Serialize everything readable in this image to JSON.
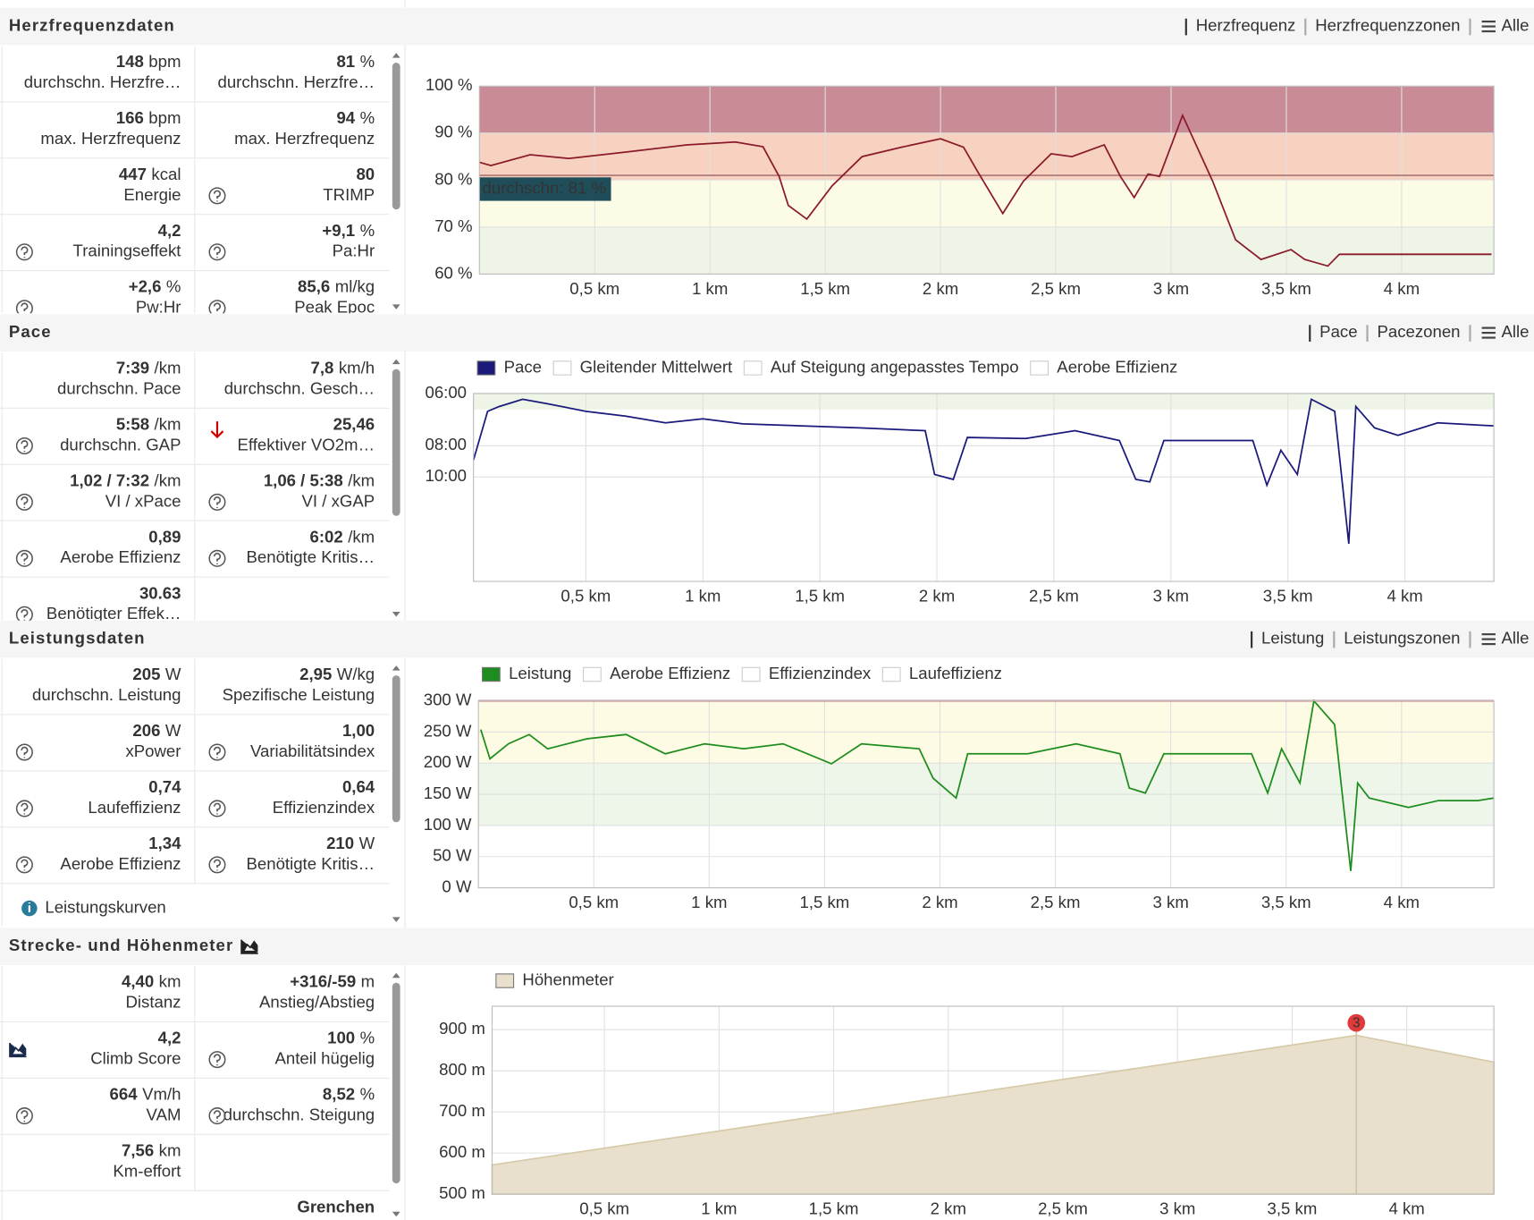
{
  "sections": [
    {
      "title": "Herzfrequenzdaten",
      "tabs": [
        "Herzfrequenz",
        "Herzfrequenzzonen",
        "Alle"
      ],
      "stats": [
        {
          "value": "148",
          "unit": "bpm",
          "label": "durchschn. Herzfre…"
        },
        {
          "value": "81",
          "unit": "%",
          "label": "durchschn. Herzfre…"
        },
        {
          "value": "166",
          "unit": "bpm",
          "label": "max. Herzfrequenz"
        },
        {
          "value": "94",
          "unit": "%",
          "label": "max. Herzfrequenz"
        },
        {
          "value": "447",
          "unit": "kcal",
          "label": "Energie"
        },
        {
          "value": "80",
          "label": "TRIMP",
          "icon": "help"
        },
        {
          "value": "4,2",
          "label": "Trainingseffekt",
          "icon": "help"
        },
        {
          "value": "+9,1",
          "unit": "%",
          "label": "Pa:Hr",
          "icon": "help"
        },
        {
          "value": "+2,6",
          "unit": "%",
          "label": "Pw:Hr",
          "icon": "help"
        },
        {
          "value": "85,6",
          "unit": "ml/kg",
          "label": "Peak Epoc",
          "icon": "help"
        }
      ],
      "chart": {
        "type": "line",
        "xlim": [
          0,
          4.4
        ],
        "ylim": [
          60,
          100
        ],
        "xticks": [
          {
            "value": 0.5,
            "label": "0,5 km"
          },
          {
            "value": 1,
            "label": "1 km"
          },
          {
            "value": 1.5,
            "label": "1,5 km"
          },
          {
            "value": 2,
            "label": "2 km"
          },
          {
            "value": 2.5,
            "label": "2,5 km"
          },
          {
            "value": 3,
            "label": "3 km"
          },
          {
            "value": 3.5,
            "label": "3,5 km"
          },
          {
            "value": 4,
            "label": "4 km"
          }
        ],
        "yticks": [
          {
            "value": 60,
            "label": "60 %"
          },
          {
            "value": 70,
            "label": "70 %"
          },
          {
            "value": 80,
            "label": "80 %"
          },
          {
            "value": 90,
            "label": "90 %"
          },
          {
            "value": 100,
            "label": "100 %"
          }
        ],
        "zones": [
          {
            "from": 90,
            "to": 100,
            "color": "#c98b96"
          },
          {
            "from": 80,
            "to": 90,
            "color": "#f7d2c0"
          },
          {
            "from": 70,
            "to": 80,
            "color": "#fcfbe6"
          },
          {
            "from": 60,
            "to": 70,
            "color": "#eef5e7"
          }
        ],
        "average": 81,
        "average_label": "durchschn: 81 %",
        "series": [
          {
            "color": "#8b1a2b",
            "x": [
              0,
              0.05,
              0.22,
              0.39,
              0.64,
              0.9,
              1.11,
              1.23,
              1.3,
              1.34,
              1.42,
              1.53,
              1.66,
              1.83,
              2.0,
              2.1,
              2.16,
              2.27,
              2.36,
              2.48,
              2.57,
              2.71,
              2.78,
              2.84,
              2.9,
              2.95,
              3.05,
              3.18,
              3.28,
              3.39,
              3.52,
              3.58,
              3.68,
              3.73,
              4.39
            ],
            "values": [
              83.8,
              83.1,
              85.4,
              84.6,
              86,
              87.5,
              88.1,
              87.1,
              80.8,
              74.6,
              71.7,
              78.8,
              85,
              87,
              88.8,
              87,
              81.9,
              72.9,
              79.8,
              85.6,
              85,
              87.5,
              80.8,
              76.3,
              81.3,
              80.8,
              93.8,
              79.8,
              67.3,
              63.1,
              65.2,
              63.1,
              61.7,
              64.2,
              64.2
            ]
          }
        ]
      }
    },
    {
      "title": "Pace",
      "tabs": [
        "Pace",
        "Pacezonen",
        "Alle"
      ],
      "stats": [
        {
          "value": "7:39",
          "unit": "/km",
          "label": "durchschn. Pace"
        },
        {
          "value": "7,8",
          "unit": "km/h",
          "label": "durchschn. Gesch…"
        },
        {
          "value": "5:58",
          "unit": "/km",
          "label": "durchschn. GAP",
          "icon": "help"
        },
        {
          "value": "25,46",
          "label": "Effektiver VO2m…",
          "icon": "arrow-down"
        },
        {
          "value": "1,02 / 7:32",
          "unit": "/km",
          "label": "VI / xPace",
          "icon": "help"
        },
        {
          "value": "1,06 / 5:38",
          "unit": "/km",
          "label": "VI / xGAP",
          "icon": "help"
        },
        {
          "value": "0,89",
          "label": "Aerobe Effizienz",
          "icon": "help"
        },
        {
          "value": "6:02",
          "unit": "/km",
          "label": "Benötigte Kritis…",
          "icon": "help"
        },
        {
          "value": "30.63",
          "label": "Benötigter Effek…",
          "icon": "help"
        }
      ],
      "chart": {
        "type": "line",
        "yscale": "reciprocal",
        "xlim": [
          0.02,
          4.38
        ],
        "ylim": [
          6,
          60
        ],
        "xticks": [
          {
            "value": 0.5,
            "label": "0,5 km"
          },
          {
            "value": 1,
            "label": "1 km"
          },
          {
            "value": 1.5,
            "label": "1,5 km"
          },
          {
            "value": 2,
            "label": "2 km"
          },
          {
            "value": 2.5,
            "label": "2,5 km"
          },
          {
            "value": 3,
            "label": "3 km"
          },
          {
            "value": 3.5,
            "label": "3,5 km"
          },
          {
            "value": 4,
            "label": "4 km"
          }
        ],
        "yticks": [
          {
            "value": 6,
            "label": "06:00"
          },
          {
            "value": 8,
            "label": "08:00"
          },
          {
            "value": 10,
            "label": "10:00"
          }
        ],
        "zones": [
          {
            "from": 6,
            "to": 6.5,
            "color": "#eef5e7"
          }
        ],
        "hidden_series": [
          "Gleitender Mittelwert",
          "Auf Steigung angepasstes Tempo",
          "Aerobe Effizienz"
        ],
        "series": [
          {
            "name": "Pace",
            "color": "#1a1a7a",
            "x": [
              0.02,
              0.08,
              0.13,
              0.23,
              0.33,
              0.5,
              0.67,
              0.84,
              1.0,
              1.17,
              1.42,
              1.67,
              1.95,
              1.99,
              2.07,
              2.13,
              2.38,
              2.59,
              2.78,
              2.85,
              2.91,
              2.97,
              3.35,
              3.41,
              3.47,
              3.54,
              3.6,
              3.7,
              3.76,
              3.79,
              3.87,
              3.97,
              4.14,
              4.38
            ],
            "values": [
              8.8,
              6.56,
              6.4,
              6.17,
              6.3,
              6.56,
              6.73,
              6.98,
              6.83,
              7.02,
              7.1,
              7.18,
              7.3,
              9.8,
              10.2,
              7.6,
              7.65,
              7.3,
              7.74,
              10.2,
              10.4,
              7.74,
              7.74,
              10.7,
              8.24,
              9.8,
              6.17,
              6.56,
              21.4,
              6.4,
              7.18,
              7.5,
              6.98,
              7.1
            ]
          }
        ]
      }
    },
    {
      "title": "Leistungsdaten",
      "tabs": [
        "Leistung",
        "Leistungszonen",
        "Alle"
      ],
      "stats": [
        {
          "value": "205",
          "unit": "W",
          "label": "durchschn. Leistung"
        },
        {
          "value": "2,95",
          "unit": "W/kg",
          "label": "Spezifische Leistung"
        },
        {
          "value": "206",
          "unit": "W",
          "label": "xPower",
          "icon": "help"
        },
        {
          "value": "1,00",
          "label": "Variabilitätsindex",
          "icon": "help"
        },
        {
          "value": "0,74",
          "label": "Laufeffizienz",
          "icon": "help"
        },
        {
          "value": "0,64",
          "label": "Effizienzindex",
          "icon": "help"
        },
        {
          "value": "1,34",
          "label": "Aerobe Effizienz",
          "icon": "help"
        },
        {
          "value": "210",
          "unit": "W",
          "label": "Benötigte Kritis…",
          "icon": "help"
        }
      ],
      "link": "Leistungskurven",
      "chart": {
        "type": "line",
        "xlim": [
          0,
          4.4
        ],
        "ylim": [
          0,
          300
        ],
        "xticks": [
          {
            "value": 0.5,
            "label": "0,5 km"
          },
          {
            "value": 1,
            "label": "1 km"
          },
          {
            "value": 1.5,
            "label": "1,5 km"
          },
          {
            "value": 2,
            "label": "2 km"
          },
          {
            "value": 2.5,
            "label": "2,5 km"
          },
          {
            "value": 3,
            "label": "3 km"
          },
          {
            "value": 3.5,
            "label": "3,5 km"
          },
          {
            "value": 4,
            "label": "4 km"
          }
        ],
        "yticks": [
          {
            "value": 0,
            "label": "0 W"
          },
          {
            "value": 50,
            "label": "50 W"
          },
          {
            "value": 100,
            "label": "100 W"
          },
          {
            "value": 150,
            "label": "150 W"
          },
          {
            "value": 200,
            "label": "200 W"
          },
          {
            "value": 250,
            "label": "250 W"
          },
          {
            "value": 300,
            "label": "300 W"
          }
        ],
        "zones": [
          {
            "from": 200,
            "to": 300,
            "color": "#fdfbe3"
          },
          {
            "from": 100,
            "to": 200,
            "color": "#edf6e9"
          }
        ],
        "hidden_series": [
          "Aerobe Effizienz",
          "Effizienzindex",
          "Laufeffizienz"
        ],
        "series": [
          {
            "name": "Leistung",
            "color": "#1e8c1e",
            "x": [
              0.01,
              0.05,
              0.13,
              0.22,
              0.3,
              0.47,
              0.64,
              0.81,
              0.98,
              1.15,
              1.32,
              1.53,
              1.66,
              1.91,
              1.97,
              2.07,
              2.12,
              2.38,
              2.59,
              2.78,
              2.82,
              2.89,
              2.97,
              3.35,
              3.42,
              3.48,
              3.56,
              3.62,
              3.71,
              3.78,
              3.81,
              3.86,
              4.03,
              4.16,
              4.33,
              4.4
            ],
            "values": [
              254,
              207,
              231,
              246,
              223,
              239,
              246,
              215,
              231,
              223,
              231,
              199,
              231,
              223,
              176,
              144,
              215,
              215,
              231,
              215,
              160,
              152,
              215,
              215,
              152,
              223,
              168,
              300,
              262,
              27,
              168,
              144,
              129,
              140,
              140,
              144
            ]
          }
        ]
      }
    },
    {
      "title": "Strecke- und Höhenmeter",
      "title_icon": "chart",
      "stats": [
        {
          "value": "4,40",
          "unit": "km",
          "label": "Distanz"
        },
        {
          "value": "+316/-59",
          "unit": "m",
          "label": "Anstieg/Abstieg"
        },
        {
          "value": "4,2",
          "label": "Climb Score",
          "icon": "chart"
        },
        {
          "value": "100",
          "unit": "%",
          "label": "Anteil hügelig",
          "icon": "help"
        },
        {
          "value": "664",
          "unit": "Vm/h",
          "label": "VAM",
          "icon": "help"
        },
        {
          "value": "8,52",
          "unit": "%",
          "label": "durchschn. Steigung",
          "icon": "help"
        },
        {
          "value": "7,56",
          "unit": "km",
          "label": "Km-effort"
        }
      ],
      "footer": "Grenchen",
      "chart": {
        "type": "area",
        "xlim": [
          0.01,
          4.38
        ],
        "ylim": [
          500,
          957
        ],
        "xticks": [
          {
            "value": 0.5,
            "label": "0,5 km"
          },
          {
            "value": 1,
            "label": "1 km"
          },
          {
            "value": 1.5,
            "label": "1,5 km"
          },
          {
            "value": 2,
            "label": "2 km"
          },
          {
            "value": 2.5,
            "label": "2,5 km"
          },
          {
            "value": 3,
            "label": "3 km"
          },
          {
            "value": 3.5,
            "label": "3,5 km"
          },
          {
            "value": 4,
            "label": "4 km"
          }
        ],
        "yticks": [
          {
            "value": 500,
            "label": "500 m"
          },
          {
            "value": 600,
            "label": "600 m"
          },
          {
            "value": 700,
            "label": "700 m"
          },
          {
            "value": 800,
            "label": "800 m"
          },
          {
            "value": 900,
            "label": "900 m"
          }
        ],
        "annotations": [
          {
            "x": 3.78,
            "label": "3"
          }
        ],
        "series": [
          {
            "name": "Höhenmeter",
            "color": "#e8e0cc",
            "x": [
              0.01,
              3.78,
              4.38
            ],
            "values": [
              571,
              886,
              821
            ]
          }
        ]
      }
    }
  ]
}
